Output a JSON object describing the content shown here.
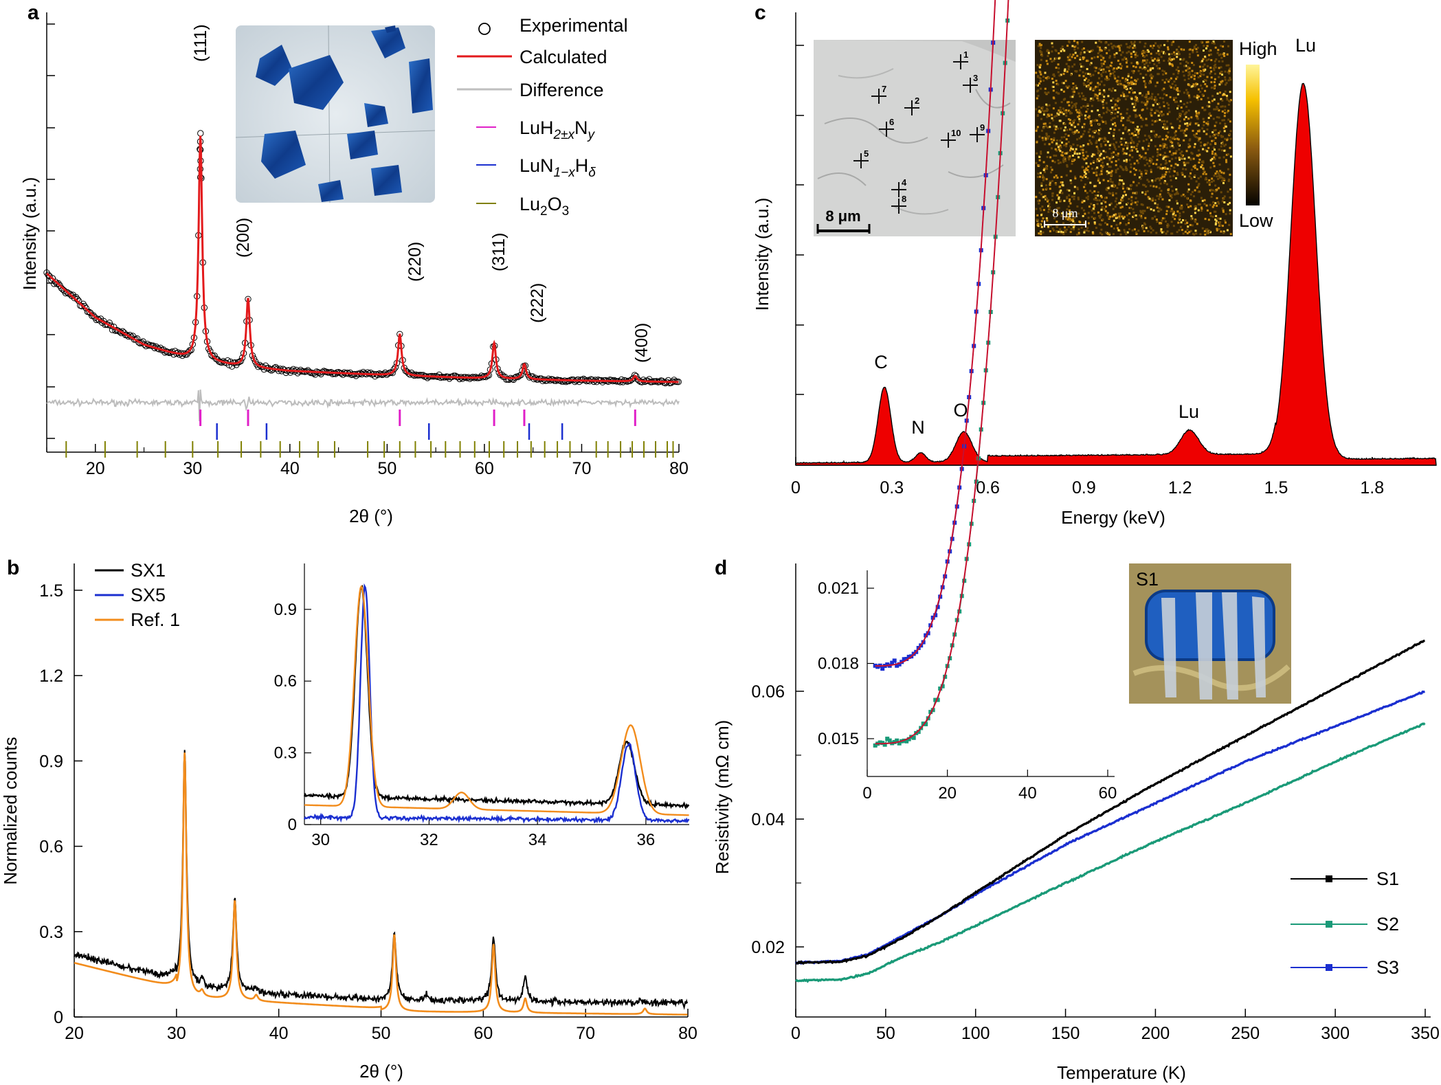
{
  "panels": {
    "a": "a",
    "b": "b",
    "c": "c",
    "d": "d"
  },
  "chart_data": [
    {
      "id": "a",
      "type": "scatter",
      "xlabel": "2θ (°)",
      "ylabel": "Intensity (a.u.)",
      "xlim": [
        15,
        80
      ],
      "ylim": [
        0,
        16
      ],
      "xticks": [
        "20",
        "30",
        "40",
        "50",
        "60",
        "70",
        "80"
      ],
      "legend_position": "top-right",
      "legend": [
        {
          "label": "Experimental",
          "marker": "open-circle",
          "color": "#000000"
        },
        {
          "label": "Calculated",
          "marker": "line",
          "color": "#e31a1c"
        },
        {
          "label": "Difference",
          "marker": "line",
          "color": "#bfbfbf"
        },
        {
          "label_parts": [
            "LuH",
            "2±x",
            "N",
            "y"
          ],
          "marker": "line",
          "color": "#e020c8"
        },
        {
          "label_parts": [
            "LuN",
            "1−x",
            "H",
            "δ"
          ],
          "marker": "line",
          "color": "#1b2fd0"
        },
        {
          "label_parts": [
            "Lu",
            "2",
            "O",
            "3"
          ],
          "marker": "line",
          "color": "#808000"
        }
      ],
      "peaks": [
        {
          "x": 30.8,
          "label": "(111)"
        },
        {
          "x": 35.7,
          "label": "(200)"
        },
        {
          "x": 51.3,
          "label": "(220)"
        },
        {
          "x": 61.0,
          "label": "(311)"
        },
        {
          "x": 64.1,
          "label": "(222)"
        },
        {
          "x": 75.5,
          "label": "(400)"
        }
      ],
      "background": [
        [
          15,
          6.5
        ],
        [
          20,
          4.9
        ],
        [
          25,
          3.9
        ],
        [
          30,
          3.35
        ],
        [
          35,
          3.1
        ],
        [
          40,
          2.95
        ],
        [
          50,
          2.8
        ],
        [
          60,
          2.68
        ],
        [
          70,
          2.6
        ],
        [
          80,
          2.55
        ]
      ],
      "peak_heights": [
        [
          30.8,
          8.2
        ],
        [
          35.7,
          2.5
        ],
        [
          51.3,
          1.5
        ],
        [
          61.0,
          1.3
        ],
        [
          64.1,
          0.55
        ],
        [
          75.5,
          0.2
        ]
      ],
      "reflections": {
        "LuH2xNy": [
          30.8,
          35.7,
          51.3,
          61.0,
          64.1,
          75.5
        ],
        "LuN1xHd": [
          32.5,
          37.6,
          54.3,
          64.6,
          68.0
        ],
        "Lu2O3": [
          17.0,
          21.0,
          24.3,
          27.2,
          30.0,
          32.6,
          35.0,
          37.0,
          39.0,
          41.0,
          42.9,
          44.6,
          48.0,
          49.7,
          51.3,
          52.9,
          54.5,
          56.0,
          57.5,
          59.0,
          60.5,
          62.0,
          63.4,
          64.8,
          66.2,
          67.5,
          68.8,
          71.5,
          72.7,
          74.0,
          75.2,
          76.4,
          77.6,
          78.8,
          79.4
        ]
      },
      "inset_photo": true
    },
    {
      "id": "b",
      "type": "line",
      "xlabel": "2θ (°)",
      "ylabel": "Normalized counts",
      "xlim": [
        20,
        80
      ],
      "ylim": [
        0,
        1.6
      ],
      "xticks": [
        "20",
        "30",
        "40",
        "50",
        "60",
        "70",
        "80"
      ],
      "yticks": [
        "0",
        "0.3",
        "0.6",
        "0.9",
        "1.2",
        "1.5"
      ],
      "legend_position": "top-left",
      "series": [
        {
          "name": "SX1",
          "color": "#000000",
          "peaks": [
            [
              30.8,
              0.85
            ],
            [
              32.5,
              0.03
            ],
            [
              35.7,
              0.33
            ],
            [
              37.7,
              0.02
            ],
            [
              51.3,
              0.24
            ],
            [
              54.5,
              0.02
            ],
            [
              61.0,
              0.23
            ],
            [
              64.1,
              0.09
            ],
            [
              75.5,
              0.01
            ]
          ]
        },
        {
          "name": "SX5",
          "color": "#1b2fd0",
          "peaks": []
        },
        {
          "name": "Ref. 1",
          "color": "#f28c1c",
          "peaks": [
            [
              30.8,
              0.86
            ],
            [
              32.5,
              0.02
            ],
            [
              35.7,
              0.35
            ],
            [
              37.8,
              0.02
            ],
            [
              51.3,
              0.27
            ],
            [
              61.0,
              0.24
            ],
            [
              64.1,
              0.05
            ],
            [
              75.8,
              0.02
            ]
          ]
        }
      ],
      "inset": {
        "xlim": [
          29.7,
          36.8
        ],
        "ylim": [
          0,
          1.05
        ],
        "xticks": [
          "30",
          "32",
          "34",
          "36"
        ],
        "yticks": [
          "0",
          "0.3",
          "0.6",
          "0.9"
        ],
        "series": [
          {
            "name": "SX1",
            "color": "#000000",
            "base": 0.12,
            "peaks": [
              [
                30.75,
                0.88,
                0.16
              ],
              [
                35.65,
                0.26,
                0.2
              ]
            ]
          },
          {
            "name": "SX5",
            "color": "#1b2fd0",
            "base": 0.03,
            "peaks": [
              [
                30.82,
                0.97,
                0.12
              ],
              [
                35.68,
                0.32,
                0.18
              ]
            ]
          },
          {
            "name": "Ref. 1",
            "color": "#f28c1c",
            "base": 0.08,
            "peaks": [
              [
                30.75,
                0.92,
                0.18
              ],
              [
                32.6,
                0.07,
                0.2
              ],
              [
                35.72,
                0.37,
                0.25
              ]
            ]
          }
        ]
      }
    },
    {
      "id": "c",
      "type": "area",
      "xlabel": "Energy (keV)",
      "ylabel": "Intensity (a.u.)",
      "xlim": [
        0,
        2.0
      ],
      "ylim": [
        0,
        1.15
      ],
      "xticks": [
        "0",
        "0.3",
        "0.6",
        "0.9",
        "1.2",
        "1.5",
        "1.8"
      ],
      "color": "#ee0000",
      "peaks": [
        {
          "x": 0.277,
          "height": 0.2,
          "label": "C"
        },
        {
          "x": 0.39,
          "height": 0.025,
          "label": "N"
        },
        {
          "x": 0.525,
          "height": 0.08,
          "label": "O"
        },
        {
          "x": 1.23,
          "height": 0.065,
          "label": "Lu"
        },
        {
          "x": 1.58,
          "height": 1.0,
          "label": "Lu"
        }
      ],
      "sem_scale": "8 μm",
      "sem_points": [
        "1",
        "2",
        "3",
        "4",
        "5",
        "6",
        "7",
        "8",
        "9",
        "10"
      ],
      "map_scale": "8 μm",
      "colorbar": {
        "high": "High",
        "low": "Low"
      }
    },
    {
      "id": "d",
      "type": "line",
      "xlabel": "Temperature (K)",
      "ylabel": "Resistivity (mΩ cm)",
      "xlim": [
        0,
        355
      ],
      "ylim": [
        0.0105,
        0.0715
      ],
      "xticks": [
        "0",
        "50",
        "100",
        "150",
        "200",
        "250",
        "300",
        "350"
      ],
      "yticks": [
        "0.02",
        "0.04",
        "0.06"
      ],
      "legend_position": "bottom-right",
      "series": [
        {
          "name": "S1",
          "color": "#000000",
          "x": [
            0,
            25,
            40,
            60,
            80,
            100,
            150,
            200,
            250,
            300,
            350
          ],
          "y": [
            0.0175,
            0.0177,
            0.0186,
            0.0215,
            0.0248,
            0.0285,
            0.0375,
            0.0455,
            0.053,
            0.0605,
            0.068
          ]
        },
        {
          "name": "S2",
          "color": "#1a9a78",
          "x": [
            0,
            25,
            40,
            60,
            80,
            100,
            150,
            200,
            250,
            300,
            350
          ],
          "y": [
            0.0147,
            0.0149,
            0.0158,
            0.0185,
            0.0207,
            0.0233,
            0.03,
            0.0365,
            0.0425,
            0.049,
            0.055
          ]
        },
        {
          "name": "S3",
          "color": "#1b2fd0",
          "x": [
            0,
            25,
            40,
            60,
            80,
            100,
            150,
            200,
            250,
            300,
            350
          ],
          "y": [
            0.0175,
            0.0178,
            0.0188,
            0.0218,
            0.0248,
            0.0282,
            0.036,
            0.0425,
            0.049,
            0.0545,
            0.06
          ]
        }
      ],
      "inset": {
        "xlim": [
          0,
          61
        ],
        "ylim": [
          0.0136,
          0.0222
        ],
        "xticks": [
          "0",
          "20",
          "40",
          "60"
        ],
        "yticks": [
          "0.015",
          "0.018",
          "0.021"
        ],
        "series": [
          {
            "name": "S3",
            "color": "#1b2fd0",
            "base": 0.0179,
            "coef": 2.56e-08
          },
          {
            "name": "S2",
            "color": "#1a9a78",
            "base": 0.0148,
            "coef": 1.93e-08
          }
        ],
        "fit_color": "#c8102e"
      },
      "photo_label": "S1"
    }
  ]
}
